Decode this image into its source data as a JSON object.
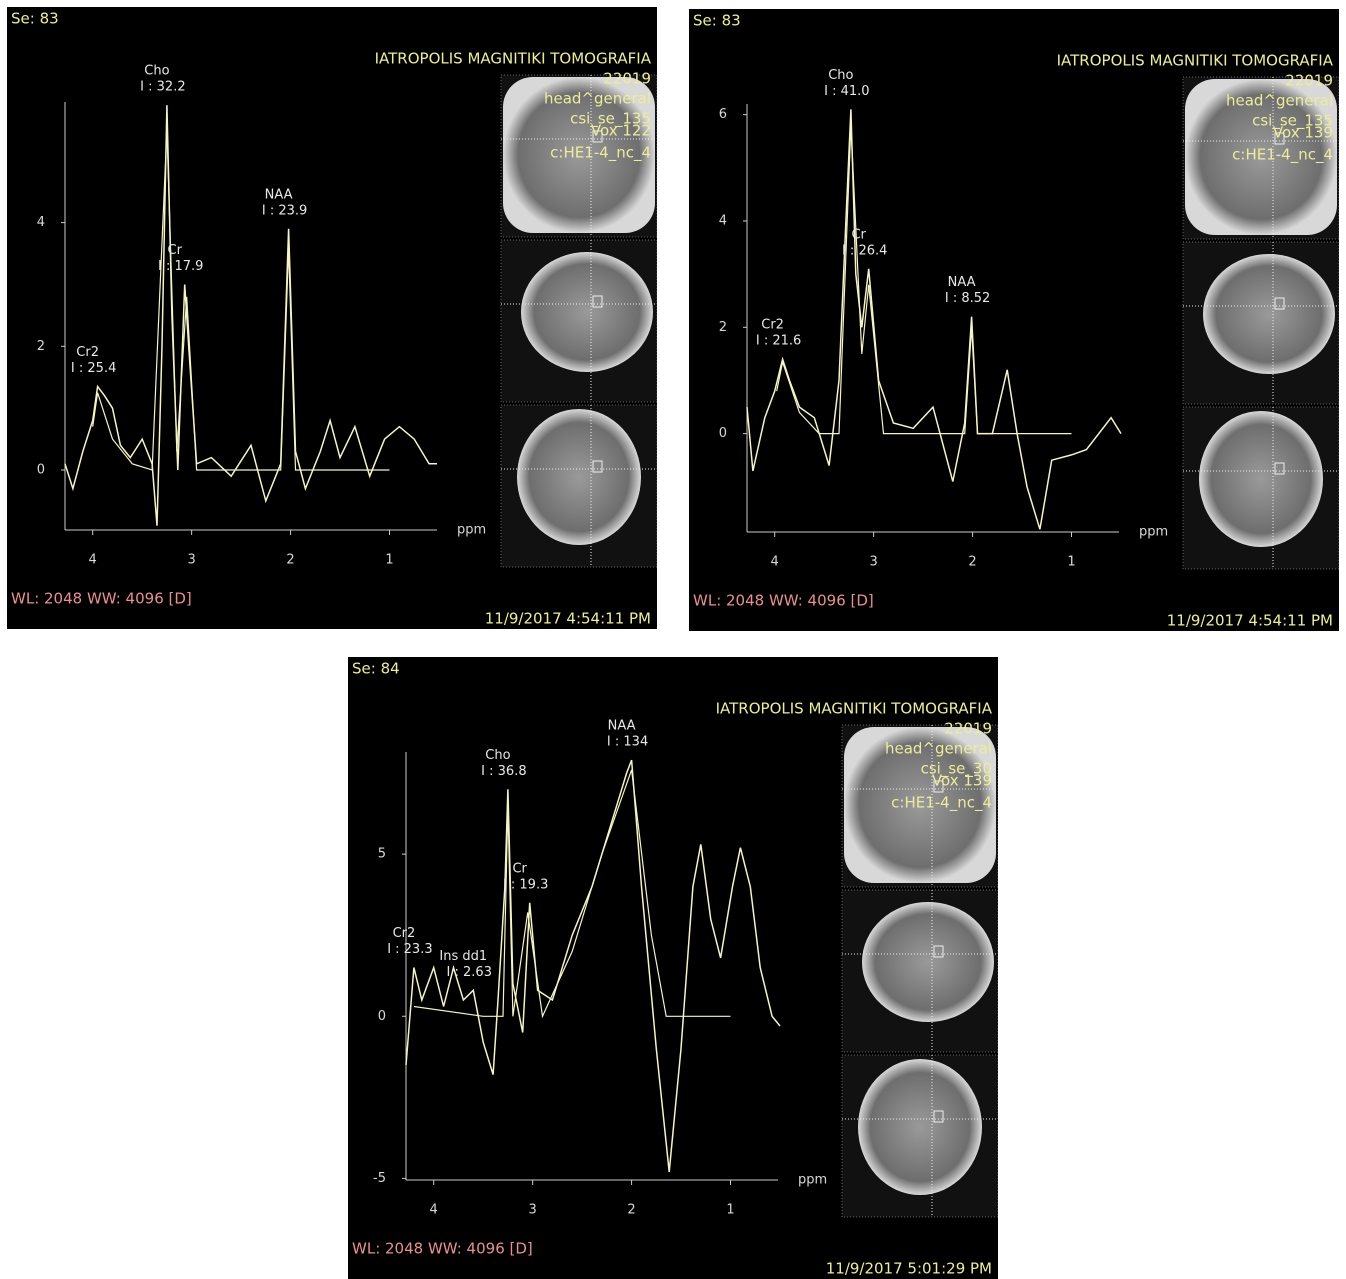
{
  "chart_data": [
    {
      "type": "line",
      "se": "Se: 83",
      "institution": "IATROPOLIS MAGNITIKI TOMOGRAFIA",
      "study": "22019",
      "region": "head^general",
      "sequence": "csi_se_135",
      "voxel": "Vox 122",
      "coil": "c:HE1-4_nc_4",
      "window": "WL: 2048 WW: 4096 [D]",
      "timestamp": "11/9/2017 4:54:11 PM",
      "x_label": "ppm",
      "xlim": [
        4.28,
        0.52
      ],
      "xticks": [
        4,
        3,
        2,
        1
      ],
      "ylim": [
        -0.97,
        5.95
      ],
      "yticks": [
        0,
        2,
        4
      ],
      "series": [
        {
          "color": "#f4f4c8",
          "x": [
            4.28,
            4.2,
            4.1,
            4.0,
            3.95,
            3.88,
            3.8,
            3.72,
            3.62,
            3.5,
            3.4,
            3.35,
            3.3,
            3.25,
            3.2,
            3.14,
            3.07,
            3.03,
            2.95,
            2.8,
            2.6,
            2.4,
            2.25,
            2.1,
            2.02,
            1.95,
            1.85,
            1.7,
            1.6,
            1.5,
            1.35,
            1.2,
            1.05,
            0.9,
            0.75,
            0.6,
            0.52
          ],
          "values": [
            0.1,
            -0.3,
            0.3,
            0.8,
            1.35,
            1.2,
            1.0,
            0.4,
            0.2,
            0.5,
            0.1,
            -0.9,
            2.0,
            5.9,
            2.5,
            0.0,
            3.0,
            2.0,
            0.1,
            0.2,
            -0.1,
            0.4,
            -0.5,
            0.1,
            3.9,
            0.3,
            -0.3,
            0.3,
            0.8,
            0.2,
            0.7,
            -0.1,
            0.5,
            0.7,
            0.5,
            0.1,
            0.1
          ]
        },
        {
          "color": "#f4f4c8",
          "x": [
            4.0,
            3.95,
            3.8,
            3.6,
            3.4,
            3.25,
            3.15,
            3.05,
            2.95,
            2.1,
            2.02,
            1.95,
            1.0
          ],
          "values": [
            0.7,
            1.25,
            0.5,
            0.1,
            0.0,
            5.5,
            0.3,
            2.8,
            0.0,
            0.0,
            3.6,
            0.0,
            0.0
          ]
        }
      ],
      "annotations": [
        {
          "name": "Cho",
          "label": "I : 32.2",
          "x": 3.25,
          "y": 5.9
        },
        {
          "name": "Cr",
          "label": "I : 17.9",
          "x": 3.07,
          "y": 3.0
        },
        {
          "name": "NAA",
          "label": "I : 23.9",
          "x": 2.02,
          "y": 3.9
        },
        {
          "name": "Cr2",
          "label": "I : 25.4",
          "x": 3.95,
          "y": 1.35
        }
      ]
    },
    {
      "type": "line",
      "se": "Se: 83",
      "institution": "IATROPOLIS MAGNITIKI TOMOGRAFIA",
      "study": "22019",
      "region": "head^general",
      "sequence": "csi_se_135",
      "voxel": "Vox 139",
      "coil": "c:HE1-4_nc_4",
      "window": "WL: 2048 WW: 4096 [D]",
      "timestamp": "11/9/2017 4:54:11 PM",
      "x_label": "ppm",
      "xlim": [
        4.28,
        0.52
      ],
      "xticks": [
        4,
        3,
        2,
        1
      ],
      "ylim": [
        -1.85,
        6.2
      ],
      "yticks": [
        0,
        2,
        4,
        6
      ],
      "series": [
        {
          "color": "#f4f4c8",
          "x": [
            4.28,
            4.22,
            4.1,
            4.0,
            3.92,
            3.85,
            3.75,
            3.6,
            3.45,
            3.35,
            3.28,
            3.23,
            3.18,
            3.12,
            3.05,
            2.95,
            2.8,
            2.6,
            2.4,
            2.2,
            2.08,
            2.01,
            1.95,
            1.8,
            1.65,
            1.55,
            1.45,
            1.32,
            1.2,
            1.0,
            0.85,
            0.6,
            0.5
          ],
          "values": [
            0.5,
            -0.7,
            0.3,
            0.8,
            1.4,
            1.0,
            0.5,
            0.3,
            -0.6,
            1.0,
            4.0,
            6.1,
            3.0,
            2.0,
            3.1,
            1.0,
            0.2,
            0.1,
            0.5,
            -0.9,
            0.2,
            2.2,
            0.0,
            0.0,
            1.2,
            0.0,
            -1.0,
            -1.8,
            -0.5,
            -0.4,
            -0.3,
            0.3,
            0.0
          ]
        },
        {
          "color": "#f4f4c8",
          "x": [
            3.98,
            3.92,
            3.75,
            3.55,
            3.35,
            3.23,
            3.12,
            3.05,
            2.9,
            2.08,
            2.01,
            1.95,
            1.0
          ],
          "values": [
            0.8,
            1.35,
            0.4,
            0.0,
            0.0,
            5.8,
            1.5,
            2.8,
            0.0,
            0.0,
            2.0,
            0.0,
            0.0
          ]
        }
      ],
      "annotations": [
        {
          "name": "Cho",
          "label": "I : 41.0",
          "x": 3.23,
          "y": 6.1
        },
        {
          "name": "Cr",
          "label": "I : 26.4",
          "x": 3.05,
          "y": 3.1
        },
        {
          "name": "NAA",
          "label": "I : 8.52",
          "x": 2.01,
          "y": 2.2
        },
        {
          "name": "Cr2",
          "label": "I : 21.6",
          "x": 3.92,
          "y": 1.4
        }
      ]
    },
    {
      "type": "line",
      "se": "Se: 84",
      "institution": "IATROPOLIS MAGNITIKI TOMOGRAFIA",
      "study": "22019",
      "region": "head^general",
      "sequence": "csi_se_30",
      "voxel": "Vox 139",
      "coil": "c:HE1-4_nc_4",
      "window": "WL: 2048 WW: 4096 [D]",
      "timestamp": "11/9/2017 5:01:29 PM",
      "x_label": "ppm",
      "xlim": [
        4.28,
        0.52
      ],
      "xticks": [
        4,
        3,
        2,
        1
      ],
      "ylim": [
        -5.05,
        8.15
      ],
      "yticks": [
        -5,
        0,
        5
      ],
      "series": [
        {
          "color": "#f4f4c8",
          "x": [
            4.28,
            4.2,
            4.12,
            4.0,
            3.9,
            3.8,
            3.7,
            3.6,
            3.5,
            3.4,
            3.35,
            3.28,
            3.25,
            3.2,
            3.1,
            3.03,
            2.95,
            2.8,
            2.6,
            2.4,
            2.2,
            2.05,
            2.0,
            1.9,
            1.75,
            1.62,
            1.5,
            1.38,
            1.3,
            1.2,
            1.1,
            0.98,
            0.9,
            0.8,
            0.7,
            0.58,
            0.5
          ],
          "values": [
            -1.5,
            1.5,
            0.5,
            1.5,
            0.3,
            1.5,
            0.5,
            0.8,
            -0.8,
            -1.8,
            0.5,
            4.0,
            7.0,
            1.0,
            -0.5,
            3.5,
            0.8,
            0.5,
            2.5,
            4.0,
            6.0,
            7.5,
            7.9,
            4.0,
            -1.0,
            -4.8,
            -1.0,
            4.0,
            5.3,
            3.0,
            1.8,
            4.0,
            5.2,
            4.0,
            1.5,
            0.0,
            -0.3
          ]
        },
        {
          "color": "#f4f4c8",
          "x": [
            4.2,
            3.5,
            3.3,
            3.25,
            3.2,
            3.05,
            2.9,
            2.6,
            2.3,
            2.0,
            1.8,
            1.65,
            1.0
          ],
          "values": [
            0.3,
            0.0,
            0.0,
            6.5,
            0.0,
            3.2,
            0.0,
            2.0,
            5.0,
            7.6,
            2.5,
            0.0,
            0.0
          ]
        }
      ],
      "annotations": [
        {
          "name": "Cho",
          "label": "I : 36.8",
          "x": 3.25,
          "y": 7.0
        },
        {
          "name": "Cr",
          "label": "I : 19.3",
          "x": 3.03,
          "y": 3.5
        },
        {
          "name": "NAA",
          "label": "I : 134",
          "x": 2.0,
          "y": 7.9
        },
        {
          "name": "Cr2",
          "label": "I : 23.3",
          "x": 4.2,
          "y": 1.5
        },
        {
          "name": "Ins dd1",
          "label": "I : 2.63",
          "x": 3.6,
          "y": 0.8
        }
      ]
    }
  ]
}
